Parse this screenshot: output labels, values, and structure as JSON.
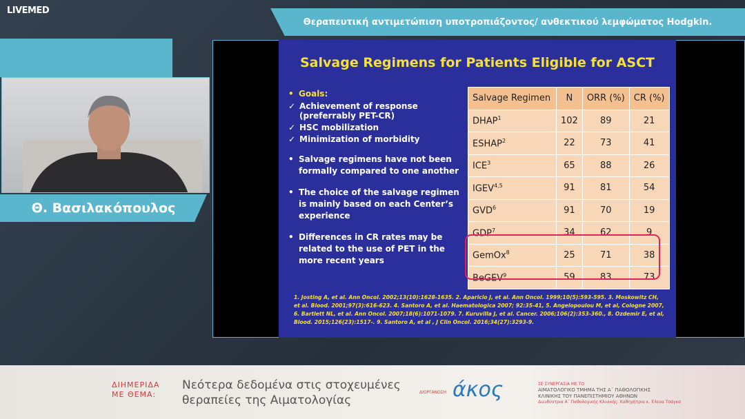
{
  "brand": "LIVEMED",
  "topic": "Θεραπευτική αντιμετώπιση υποτροπιάζοντος/ ανθεκτικού λεμφώματος Hodgkin.",
  "speaker": "Θ. Βασιλακόπουλος",
  "slide": {
    "title": "Salvage Regimens for Patients Eligible for ASCT",
    "goals_heading": "Goals:",
    "goals": [
      "Achievement of response (preferrably PET-CR)",
      "HSC mobilization",
      "Minimization of morbidity"
    ],
    "bullets": [
      "Salvage regimens have not been formally compared to one another",
      "The choice of the salvage regimen is mainly based on each Center’s experience",
      "Differences in CR rates may be related to the use of PET in the more recent years"
    ],
    "table": {
      "columns": [
        "Salvage Regimen",
        "N",
        "ORR (%)",
        "CR (%)"
      ],
      "rows": [
        {
          "regimen": "DHAP",
          "ref": "1",
          "n": 102,
          "orr": 89,
          "cr": 21
        },
        {
          "regimen": "ESHAP",
          "ref": "2",
          "n": 22,
          "orr": 73,
          "cr": 41
        },
        {
          "regimen": "ICE",
          "ref": "3",
          "n": 65,
          "orr": 88,
          "cr": 26
        },
        {
          "regimen": "IGEV",
          "ref": "4,5",
          "n": 91,
          "orr": 81,
          "cr": 54
        },
        {
          "regimen": "GVD",
          "ref": "6",
          "n": 91,
          "orr": 70,
          "cr": 19
        },
        {
          "regimen": "GDP",
          "ref": "7",
          "n": 34,
          "orr": 62,
          "cr": 9
        },
        {
          "regimen": "GemOx",
          "ref": "8",
          "n": 25,
          "orr": 71,
          "cr": 38
        },
        {
          "regimen": "BeGEV",
          "ref": "9",
          "n": 59,
          "orr": 83,
          "cr": 73
        }
      ]
    },
    "references": "1. Josting A, et al. Ann Oncol. 2002;13(10):1628-1635. 2. Aparicio J, et al. Ann Oncol. 1999;10(5):593-595. 3. Moskowitz CH, et al. Blood. 2001;97(3):616-623. 4. Santoro A, et al. Haematologica 2007; 92:35-41, 5. Angelopoulou M, et al, Cologne 2007, 6. Bartlett NL, et al. Ann Oncol. 2007;18(6):1071-1079. 7. Kuruvilla J, et al. Cancer. 2006;106(2):353-360., 8. Ozdemir E, et al, Blood. 2015;126(23):1517-. 9. Santoro A, et al , J Clin Oncol. 2016;34(27):3293-9."
  },
  "banner": {
    "label": [
      "ΔΙΗΜΕΡΙΔΑ",
      "ΜΕ ΘΕΜΑ:"
    ],
    "title": [
      "Νεότερα δεδομένα στις στοχευμένες",
      "θεραπείες της Αιματολογίας"
    ],
    "organizer_label": "ΔΙΟΡΓΑΝΩΣΗ",
    "organizer": "άκος",
    "collab_label": "ΣΕ ΣΥΝΕΡΓΑΣΙΑ ΜΕ ΤΟ",
    "collab": [
      "ΑΙΜΑΤΟΛΟΓΙΚΟ ΤΜΗΜΑ ΤΗΣ Α΄ ΠΑΘΟΛΟΓΙΚΗΣ",
      "ΚΛΙΝΙΚΗΣ ΤΟΥ ΠΑΝΕΠΙΣΤΗΜΙΟΥ ΑΘΗΝΩΝ"
    ],
    "director": "Διευθύντρια Α΄ Παθολογικής Κλινικής: Καθηγήτρια κ. Έλενα Τσάγκα"
  }
}
